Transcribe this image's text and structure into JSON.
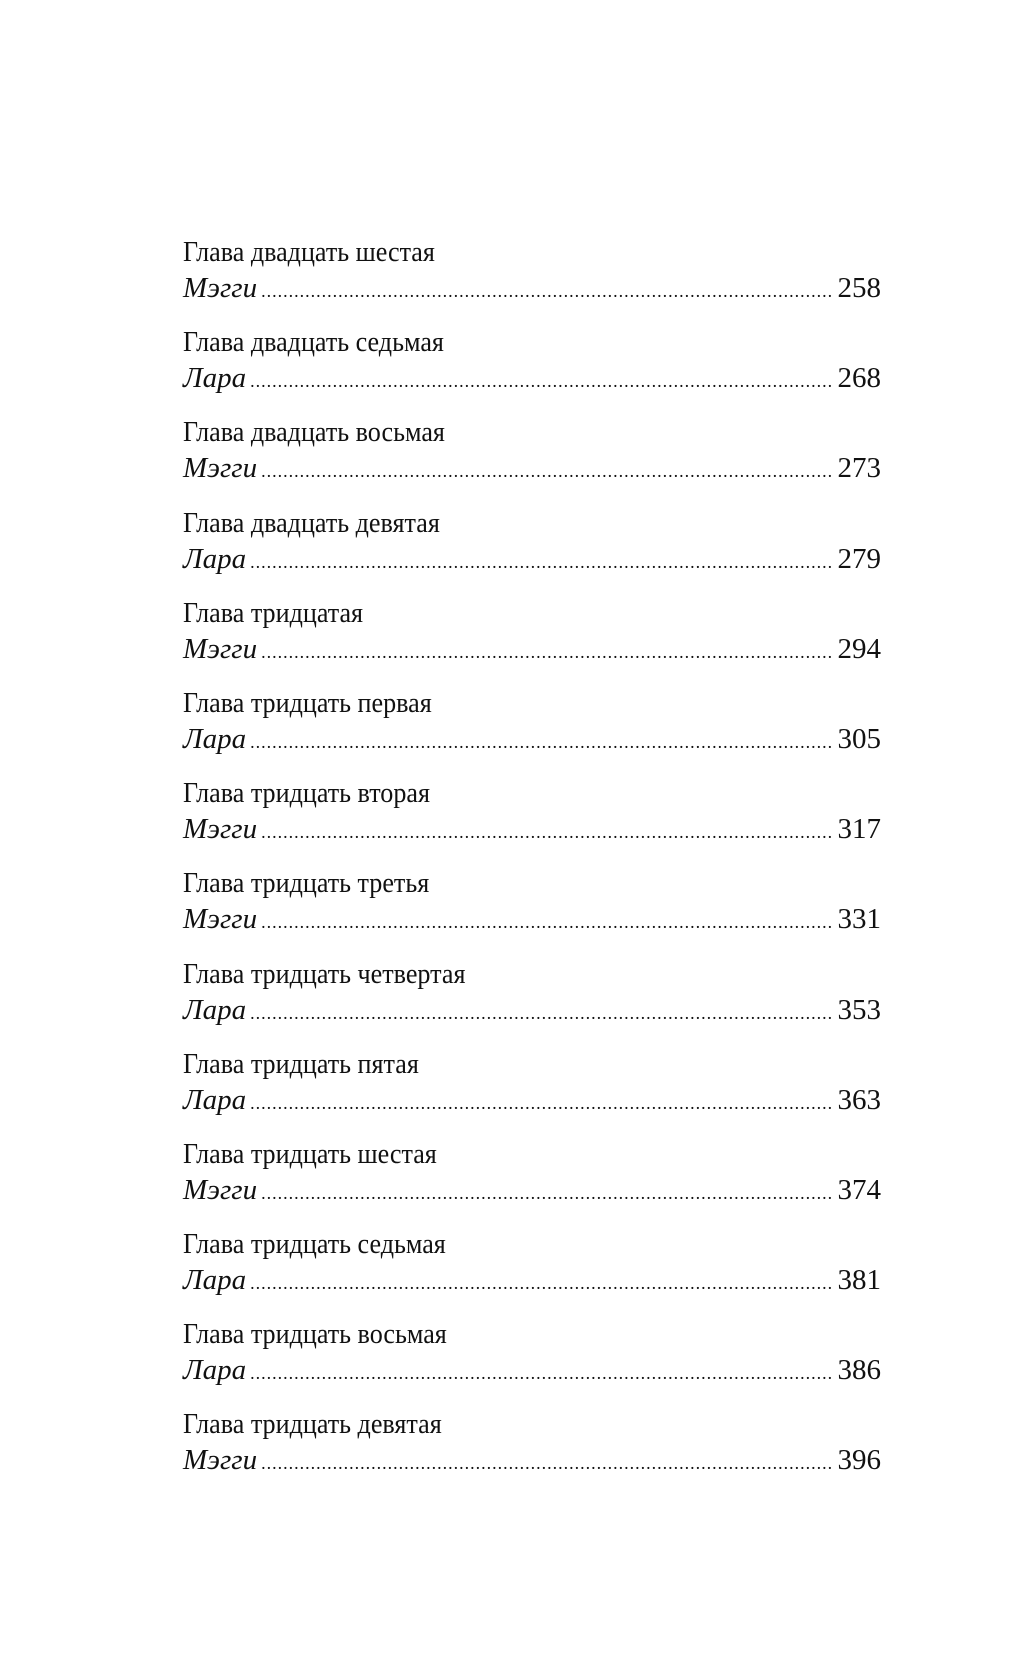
{
  "entries": [
    {
      "title": "Глава двадцать шестая",
      "narrator": "Мэгги",
      "page": "258"
    },
    {
      "title": "Глава двадцать седьмая",
      "narrator": "Лара",
      "page": "268"
    },
    {
      "title": "Глава двадцать восьмая",
      "narrator": "Мэгги",
      "page": "273"
    },
    {
      "title": "Глава двадцать девятая",
      "narrator": "Лара",
      "page": "279"
    },
    {
      "title": "Глава тридцатая",
      "narrator": "Мэгги",
      "page": "294"
    },
    {
      "title": "Глава тридцать первая",
      "narrator": "Лара",
      "page": "305"
    },
    {
      "title": "Глава тридцать вторая",
      "narrator": "Мэгги",
      "page": "317"
    },
    {
      "title": "Глава тридцать третья",
      "narrator": "Мэгги",
      "page": "331"
    },
    {
      "title": "Глава тридцать четвертая",
      "narrator": "Лара",
      "page": "353"
    },
    {
      "title": "Глава тридцать пятая",
      "narrator": "Лара",
      "page": "363"
    },
    {
      "title": "Глава тридцать шестая",
      "narrator": "Мэгги",
      "page": "374"
    },
    {
      "title": "Глава тридцать седьмая",
      "narrator": "Лара",
      "page": "381"
    },
    {
      "title": "Глава тридцать восьмая",
      "narrator": "Лара",
      "page": "386"
    },
    {
      "title": "Глава тридцать девятая",
      "narrator": "Мэгги",
      "page": "396"
    }
  ]
}
